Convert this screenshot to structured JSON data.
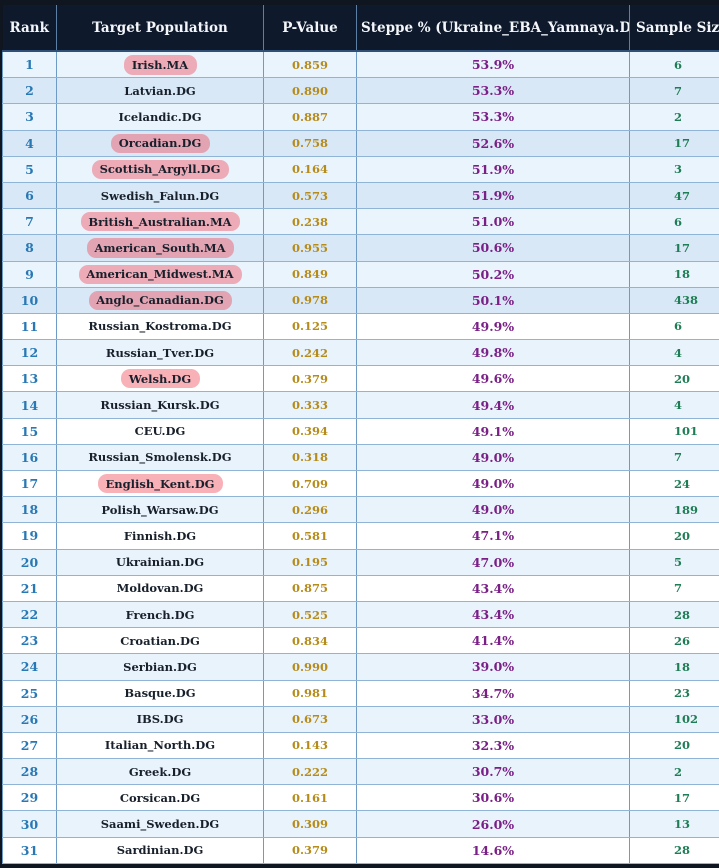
{
  "table": {
    "headers": {
      "rank": "Rank",
      "population": "Target Population",
      "pvalue": "P-Value",
      "steppe": "Steppe % (Ukraine_EBA_Yamnaya.DG",
      "sample": "Sample Size"
    },
    "top_group_size": 10,
    "highlight_color": "#f04655",
    "rows": [
      {
        "rank": "1",
        "population": "Irish.MA",
        "pvalue": "0.859",
        "steppe": "53.9%",
        "sample": "6",
        "highlighted": true
      },
      {
        "rank": "2",
        "population": "Latvian.DG",
        "pvalue": "0.890",
        "steppe": "53.3%",
        "sample": "7",
        "highlighted": false
      },
      {
        "rank": "3",
        "population": "Icelandic.DG",
        "pvalue": "0.887",
        "steppe": "53.3%",
        "sample": "2",
        "highlighted": false
      },
      {
        "rank": "4",
        "population": "Orcadian.DG",
        "pvalue": "0.758",
        "steppe": "52.6%",
        "sample": "17",
        "highlighted": true
      },
      {
        "rank": "5",
        "population": "Scottish_Argyll.DG",
        "pvalue": "0.164",
        "steppe": "51.9%",
        "sample": "3",
        "highlighted": true
      },
      {
        "rank": "6",
        "population": "Swedish_Falun.DG",
        "pvalue": "0.573",
        "steppe": "51.9%",
        "sample": "47",
        "highlighted": false
      },
      {
        "rank": "7",
        "population": "British_Australian.MA",
        "pvalue": "0.238",
        "steppe": "51.0%",
        "sample": "6",
        "highlighted": true
      },
      {
        "rank": "8",
        "population": "American_South.MA",
        "pvalue": "0.955",
        "steppe": "50.6%",
        "sample": "17",
        "highlighted": true
      },
      {
        "rank": "9",
        "population": "American_Midwest.MA",
        "pvalue": "0.849",
        "steppe": "50.2%",
        "sample": "18",
        "highlighted": true
      },
      {
        "rank": "10",
        "population": "Anglo_Canadian.DG",
        "pvalue": "0.978",
        "steppe": "50.1%",
        "sample": "438",
        "highlighted": true
      },
      {
        "rank": "11",
        "population": "Russian_Kostroma.DG",
        "pvalue": "0.125",
        "steppe": "49.9%",
        "sample": "6",
        "highlighted": false
      },
      {
        "rank": "12",
        "population": "Russian_Tver.DG",
        "pvalue": "0.242",
        "steppe": "49.8%",
        "sample": "4",
        "highlighted": false
      },
      {
        "rank": "13",
        "population": "Welsh.DG",
        "pvalue": "0.379",
        "steppe": "49.6%",
        "sample": "20",
        "highlighted": true
      },
      {
        "rank": "14",
        "population": "Russian_Kursk.DG",
        "pvalue": "0.333",
        "steppe": "49.4%",
        "sample": "4",
        "highlighted": false
      },
      {
        "rank": "15",
        "population": "CEU.DG",
        "pvalue": "0.394",
        "steppe": "49.1%",
        "sample": "101",
        "highlighted": false
      },
      {
        "rank": "16",
        "population": "Russian_Smolensk.DG",
        "pvalue": "0.318",
        "steppe": "49.0%",
        "sample": "7",
        "highlighted": false
      },
      {
        "rank": "17",
        "population": "English_Kent.DG",
        "pvalue": "0.709",
        "steppe": "49.0%",
        "sample": "24",
        "highlighted": true
      },
      {
        "rank": "18",
        "population": "Polish_Warsaw.DG",
        "pvalue": "0.296",
        "steppe": "49.0%",
        "sample": "189",
        "highlighted": false
      },
      {
        "rank": "19",
        "population": "Finnish.DG",
        "pvalue": "0.581",
        "steppe": "47.1%",
        "sample": "20",
        "highlighted": false
      },
      {
        "rank": "20",
        "population": "Ukrainian.DG",
        "pvalue": "0.195",
        "steppe": "47.0%",
        "sample": "5",
        "highlighted": false
      },
      {
        "rank": "21",
        "population": "Moldovan.DG",
        "pvalue": "0.875",
        "steppe": "43.4%",
        "sample": "7",
        "highlighted": false
      },
      {
        "rank": "22",
        "population": "French.DG",
        "pvalue": "0.525",
        "steppe": "43.4%",
        "sample": "28",
        "highlighted": false
      },
      {
        "rank": "23",
        "population": "Croatian.DG",
        "pvalue": "0.834",
        "steppe": "41.4%",
        "sample": "26",
        "highlighted": false
      },
      {
        "rank": "24",
        "population": "Serbian.DG",
        "pvalue": "0.990",
        "steppe": "39.0%",
        "sample": "18",
        "highlighted": false
      },
      {
        "rank": "25",
        "population": "Basque.DG",
        "pvalue": "0.981",
        "steppe": "34.7%",
        "sample": "23",
        "highlighted": false
      },
      {
        "rank": "26",
        "population": "IBS.DG",
        "pvalue": "0.673",
        "steppe": "33.0%",
        "sample": "102",
        "highlighted": false
      },
      {
        "rank": "27",
        "population": "Italian_North.DG",
        "pvalue": "0.143",
        "steppe": "32.3%",
        "sample": "20",
        "highlighted": false
      },
      {
        "rank": "28",
        "population": "Greek.DG",
        "pvalue": "0.222",
        "steppe": "30.7%",
        "sample": "2",
        "highlighted": false
      },
      {
        "rank": "29",
        "population": "Corsican.DG",
        "pvalue": "0.161",
        "steppe": "30.6%",
        "sample": "17",
        "highlighted": false
      },
      {
        "rank": "30",
        "population": "Saami_Sweden.DG",
        "pvalue": "0.309",
        "steppe": "26.0%",
        "sample": "13",
        "highlighted": false
      },
      {
        "rank": "31",
        "population": "Sardinian.DG",
        "pvalue": "0.379",
        "steppe": "14.6%",
        "sample": "28",
        "highlighted": false
      }
    ]
  }
}
